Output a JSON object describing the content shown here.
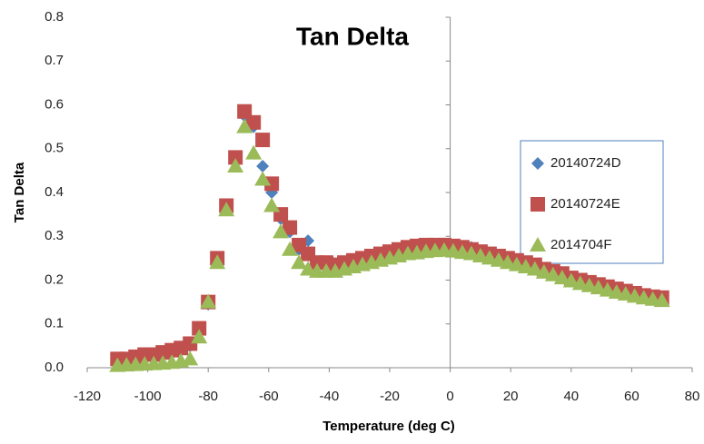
{
  "chart_data": {
    "type": "scatter",
    "title": "Tan Delta",
    "x_label": "Temperature (deg C)",
    "y_label": "Tan Delta",
    "xlim": [
      -120,
      80
    ],
    "xticks": [
      -120,
      -100,
      -80,
      -60,
      -40,
      -20,
      0,
      20,
      40,
      60,
      80
    ],
    "ylim": [
      0,
      0.8
    ],
    "yticks": [
      {
        "value": 0,
        "label": "0.0"
      },
      0.1,
      0.2,
      0.3,
      0.4,
      0.5,
      0.6,
      0.7,
      0.8
    ],
    "grid": false,
    "legend": "right",
    "x": [
      -110,
      -107,
      -104,
      -101,
      -98,
      -95,
      -92,
      -89,
      -86,
      -83,
      -80,
      -77,
      -74,
      -71,
      -68,
      -65,
      -62,
      -59,
      -56,
      -53,
      -50,
      -47,
      -44,
      -41,
      -38,
      -35,
      -32,
      -29,
      -26,
      -23,
      -20,
      -17,
      -14,
      -11,
      -8,
      -5,
      -2,
      1,
      4,
      7,
      10,
      13,
      16,
      19,
      22,
      25,
      28,
      31,
      34,
      37,
      40,
      43,
      46,
      49,
      52,
      55,
      58,
      61,
      64,
      67,
      70
    ],
    "series": [
      {
        "name": "20140724D",
        "color": "#4f81bd",
        "marker": "diamond",
        "values": [
          0.015,
          0.018,
          0.022,
          0.026,
          0.028,
          0.032,
          0.036,
          0.042,
          0.05,
          0.085,
          0.145,
          0.245,
          0.365,
          0.475,
          0.575,
          0.55,
          0.46,
          0.4,
          0.34,
          0.31,
          0.27,
          0.29,
          0.235,
          0.235,
          0.232,
          0.236,
          0.242,
          0.248,
          0.253,
          0.258,
          0.263,
          0.268,
          0.273,
          0.277,
          0.279,
          0.282,
          0.283,
          0.28,
          0.277,
          0.275,
          0.265,
          0.26,
          0.255,
          0.25,
          0.245,
          0.24,
          0.235,
          0.225,
          0.22,
          0.213,
          0.205,
          0.2,
          0.194,
          0.188,
          0.183,
          0.178,
          0.173,
          0.168,
          0.164,
          0.16,
          0.158
        ]
      },
      {
        "name": "20140724E",
        "color": "#c0504d",
        "marker": "square",
        "values": [
          0.02,
          0.02,
          0.025,
          0.03,
          0.03,
          0.035,
          0.04,
          0.045,
          0.055,
          0.09,
          0.15,
          0.25,
          0.37,
          0.48,
          0.585,
          0.56,
          0.52,
          0.42,
          0.35,
          0.32,
          0.28,
          0.26,
          0.24,
          0.24,
          0.235,
          0.24,
          0.245,
          0.25,
          0.255,
          0.26,
          0.265,
          0.27,
          0.275,
          0.278,
          0.28,
          0.28,
          0.28,
          0.278,
          0.275,
          0.27,
          0.265,
          0.26,
          0.255,
          0.25,
          0.245,
          0.24,
          0.235,
          0.225,
          0.22,
          0.215,
          0.205,
          0.2,
          0.195,
          0.19,
          0.185,
          0.18,
          0.175,
          0.17,
          0.165,
          0.162,
          0.16
        ]
      },
      {
        "name": "2014704F",
        "color": "#9bbb59",
        "marker": "triangle",
        "values": [
          0.005,
          0.006,
          0.007,
          0.008,
          0.009,
          0.01,
          0.012,
          0.015,
          0.02,
          0.07,
          0.15,
          0.24,
          0.36,
          0.46,
          0.55,
          0.49,
          0.43,
          0.37,
          0.31,
          0.27,
          0.24,
          0.225,
          0.22,
          0.22,
          0.22,
          0.225,
          0.23,
          0.235,
          0.24,
          0.245,
          0.25,
          0.255,
          0.26,
          0.262,
          0.265,
          0.267,
          0.268,
          0.266,
          0.263,
          0.26,
          0.255,
          0.25,
          0.245,
          0.24,
          0.235,
          0.23,
          0.225,
          0.218,
          0.212,
          0.205,
          0.198,
          0.192,
          0.187,
          0.182,
          0.177,
          0.172,
          0.168,
          0.163,
          0.159,
          0.156,
          0.153
        ]
      }
    ]
  }
}
